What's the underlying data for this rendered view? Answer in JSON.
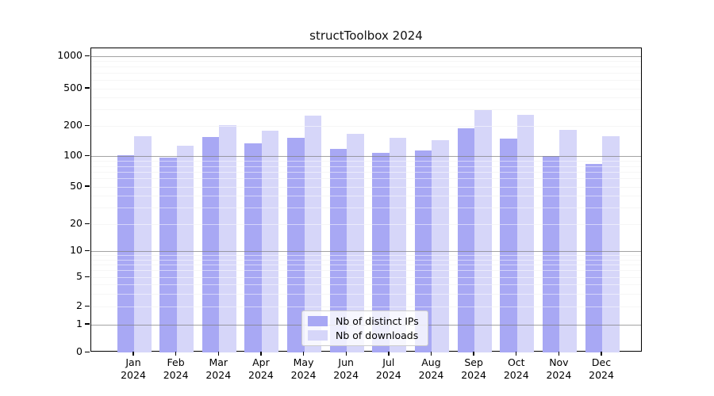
{
  "title": "structToolbox 2024",
  "legend": {
    "items": [
      {
        "label": "Nb of distinct IPs",
        "color": "#a8a8f4"
      },
      {
        "label": "Nb of downloads",
        "color": "#d6d6f9"
      }
    ]
  },
  "chart_data": {
    "type": "bar",
    "title": "structToolbox 2024",
    "categories": [
      "Jan 2024",
      "Feb 2024",
      "Mar 2024",
      "Apr 2024",
      "May 2024",
      "Jun 2024",
      "Jul 2024",
      "Aug 2024",
      "Sep 2024",
      "Oct 2024",
      "Nov 2024",
      "Dec 2024"
    ],
    "series": [
      {
        "name": "Nb of distinct IPs",
        "color": "#a8a8f4",
        "values": [
          103,
          97,
          155,
          136,
          153,
          119,
          108,
          115,
          192,
          150,
          101,
          85
        ]
      },
      {
        "name": "Nb of downloads",
        "color": "#d6d6f9",
        "values": [
          160,
          127,
          207,
          179,
          260,
          168,
          153,
          146,
          295,
          265,
          185,
          159
        ]
      }
    ],
    "yscale": "symlog",
    "yticks": [
      0,
      1,
      2,
      5,
      10,
      20,
      50,
      100,
      200,
      500,
      1000
    ],
    "ylim": [
      0,
      1200
    ],
    "xlabel": "",
    "ylabel": "",
    "grid": "both",
    "legend_position": "lower center"
  }
}
